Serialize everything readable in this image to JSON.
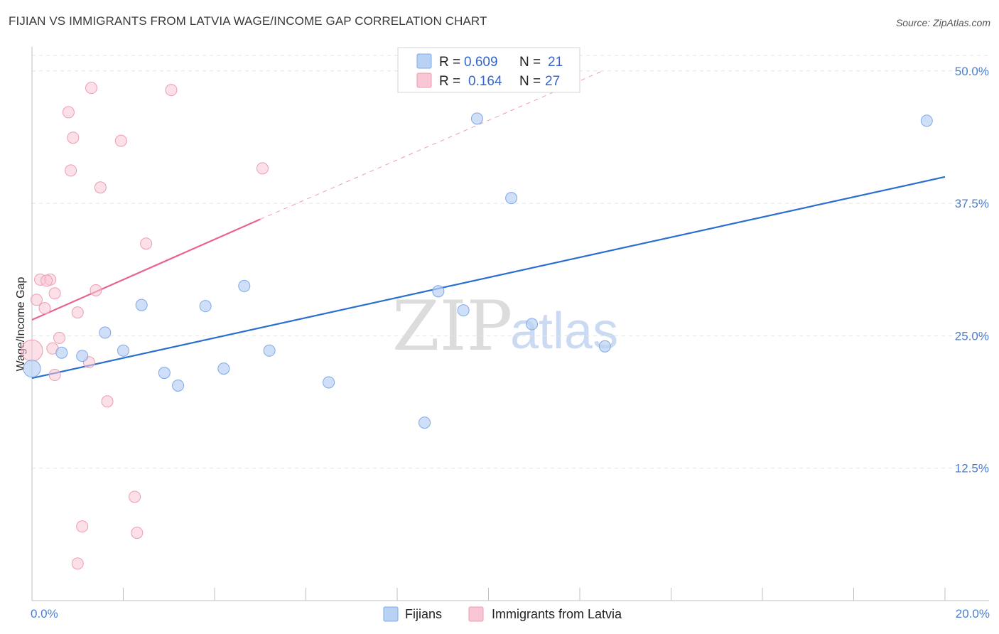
{
  "header": {
    "title": "FIJIAN VS IMMIGRANTS FROM LATVIA WAGE/INCOME GAP CORRELATION CHART",
    "source": "Source: ZipAtlas.com"
  },
  "colors": {
    "fijians_fill": "#b9d2f4",
    "fijians_stroke": "#7fa8e6",
    "fijians_line": "#2a6fd0",
    "latvia_fill": "#f8c6d4",
    "latvia_stroke": "#ef9bb2",
    "latvia_line": "#e8638d",
    "tick_text": "#4a7fd0"
  },
  "watermark": {
    "zip": "ZIP",
    "atlas": "atlas"
  },
  "legend": {
    "rows": [
      {
        "r_label": "R =",
        "r_value": "0.609",
        "n_label": "N =",
        "n_value": "21"
      },
      {
        "r_label": "R =",
        "r_value": "0.164",
        "n_label": "N =",
        "n_value": "27"
      }
    ]
  },
  "bottom_legend": {
    "fijians": "Fijians",
    "latvia": "Immigrants from Latvia"
  },
  "chart_data": {
    "type": "scatter",
    "title": "FIJIAN VS IMMIGRANTS FROM LATVIA WAGE/INCOME GAP CORRELATION CHART",
    "xlabel": "",
    "ylabel": "Wage/Income Gap",
    "xlim": [
      0,
      20
    ],
    "ylim": [
      0,
      52
    ],
    "x_tick_labels": [
      "0.0%",
      "20.0%"
    ],
    "y_ticks": [
      12.5,
      25.0,
      37.5,
      50.0
    ],
    "y_tick_labels": [
      "12.5%",
      "25.0%",
      "37.5%",
      "50.0%"
    ],
    "grid": true,
    "legend_position": "top-center",
    "series": [
      {
        "name": "Fijians",
        "r": 0.609,
        "n": 21,
        "points": [
          [
            0.0,
            21.9
          ],
          [
            0.65,
            23.4
          ],
          [
            1.1,
            23.1
          ],
          [
            1.6,
            25.3
          ],
          [
            2.0,
            23.6
          ],
          [
            2.4,
            27.9
          ],
          [
            2.9,
            21.5
          ],
          [
            3.2,
            20.3
          ],
          [
            3.8,
            27.8
          ],
          [
            4.2,
            21.9
          ],
          [
            4.65,
            29.7
          ],
          [
            5.2,
            23.6
          ],
          [
            6.5,
            20.6
          ],
          [
            8.6,
            16.8
          ],
          [
            8.9,
            29.2
          ],
          [
            9.45,
            27.4
          ],
          [
            9.75,
            45.5
          ],
          [
            10.5,
            38.0
          ],
          [
            10.95,
            26.1
          ],
          [
            12.55,
            24.0
          ],
          [
            19.6,
            45.3
          ]
        ],
        "trendline": {
          "x": [
            0.0,
            20.0
          ],
          "y": [
            21.0,
            40.0
          ]
        }
      },
      {
        "name": "Immigrants from Latvia",
        "r": 0.164,
        "n": 27,
        "points": [
          [
            0.1,
            28.4
          ],
          [
            0.18,
            30.3
          ],
          [
            0.28,
            27.6
          ],
          [
            0.4,
            30.3
          ],
          [
            0.5,
            29.0
          ],
          [
            0.32,
            30.2
          ],
          [
            0.45,
            23.8
          ],
          [
            0.6,
            24.8
          ],
          [
            0.5,
            21.3
          ],
          [
            1.0,
            27.2
          ],
          [
            1.25,
            22.5
          ],
          [
            1.4,
            29.3
          ],
          [
            1.65,
            18.8
          ],
          [
            0.8,
            46.1
          ],
          [
            0.9,
            43.7
          ],
          [
            0.85,
            40.6
          ],
          [
            1.3,
            48.4
          ],
          [
            1.5,
            39.0
          ],
          [
            1.95,
            43.4
          ],
          [
            2.5,
            33.7
          ],
          [
            3.05,
            48.2
          ],
          [
            5.05,
            40.8
          ],
          [
            2.25,
            9.8
          ],
          [
            2.3,
            6.4
          ],
          [
            1.1,
            7.0
          ],
          [
            1.0,
            3.5
          ],
          [
            0.0,
            23.6
          ]
        ],
        "trendline": {
          "x": [
            0.0,
            5.0
          ],
          "y": [
            26.5,
            36.0
          ]
        },
        "trendline_dashed": {
          "x": [
            5.0,
            12.5
          ],
          "y": [
            36.0,
            50.0
          ]
        }
      }
    ]
  }
}
